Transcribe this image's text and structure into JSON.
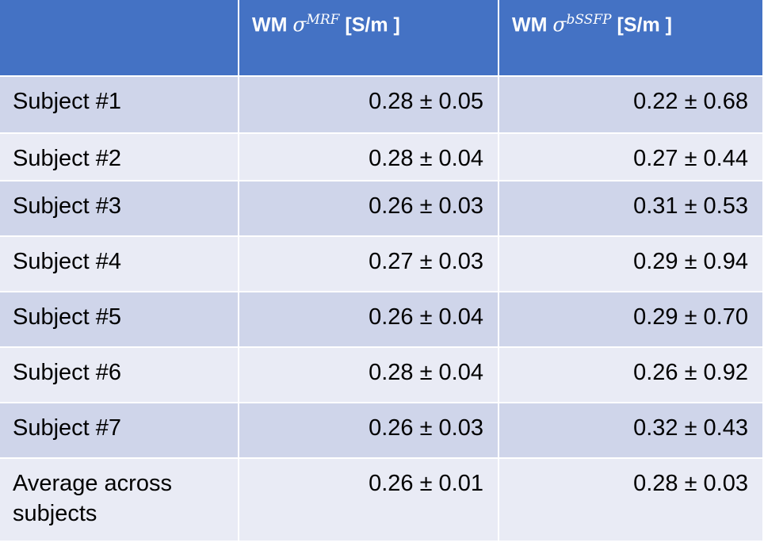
{
  "table": {
    "header": [
      {
        "prefix": "WM",
        "symbol": "σ",
        "superscript": "MRF",
        "unit": "[S/m ]"
      },
      {
        "prefix": "WM",
        "symbol": "σ",
        "superscript": "bSSFP",
        "unit": "[S/m ]"
      }
    ],
    "rows": [
      [
        "Subject #1",
        "0.28 ± 0.05",
        "0.22 ± 0.68"
      ],
      [
        "Subject #2",
        "0.28 ± 0.04",
        "0.27 ± 0.44"
      ],
      [
        "Subject #3",
        "0.26 ± 0.03",
        "0.31 ± 0.53"
      ],
      [
        "Subject #4",
        "0.27 ± 0.03",
        "0.29 ± 0.94"
      ],
      [
        "Subject #5",
        "0.26 ± 0.04",
        "0.29 ± 0.70"
      ],
      [
        "Subject #6",
        "0.28 ± 0.04",
        "0.26 ± 0.92"
      ],
      [
        "Subject #7",
        "0.26 ± 0.03",
        "0.32 ± 0.43"
      ],
      [
        "Average across subjects",
        "0.26 ± 0.01",
        "0.28 ± 0.03"
      ]
    ]
  }
}
